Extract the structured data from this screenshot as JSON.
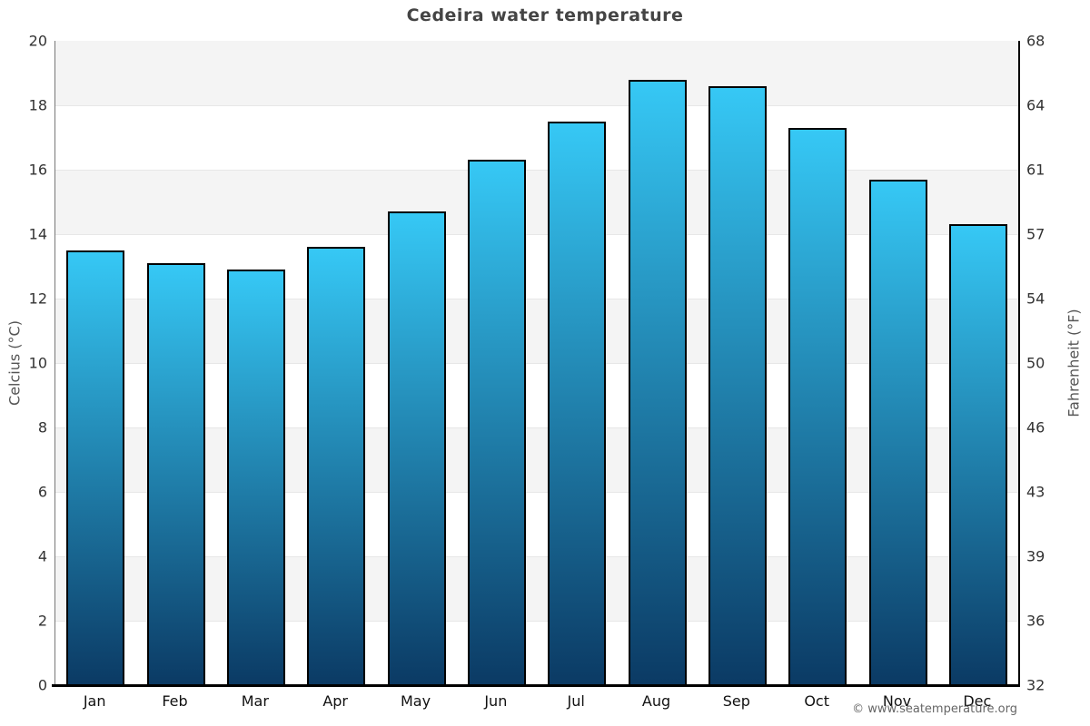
{
  "chart_data": {
    "type": "bar",
    "title": "Cedeira water temperature",
    "categories": [
      "Jan",
      "Feb",
      "Mar",
      "Apr",
      "May",
      "Jun",
      "Jul",
      "Aug",
      "Sep",
      "Oct",
      "Nov",
      "Dec"
    ],
    "values": [
      13.5,
      13.1,
      12.9,
      13.6,
      14.7,
      16.3,
      17.5,
      18.8,
      18.6,
      17.3,
      15.7,
      14.3
    ],
    "ylabel_left": "Celcius (°C)",
    "ylabel_right": "Fahrenheit (°F)",
    "ylim": [
      0,
      20
    ],
    "y_left_ticks": [
      0,
      2,
      4,
      6,
      8,
      10,
      12,
      14,
      16,
      18,
      20
    ],
    "y_right_ticks": [
      32,
      36,
      39,
      43,
      46,
      50,
      54,
      57,
      61,
      64,
      68
    ],
    "grid": "banded-every-2-degrees",
    "legend": "none",
    "colors": {
      "bar_top": "#36c8f5",
      "bar_bottom": "#0b3a64",
      "bar_border": "#000000",
      "band_gray": "#f4f4f4",
      "grid_line": "#e7e7e7",
      "title": "#444444",
      "tick_label": "#333333",
      "month_label": "#111111",
      "axis_title": "#555555"
    }
  },
  "footer": {
    "copyright": "© www.seatemperature.org"
  }
}
